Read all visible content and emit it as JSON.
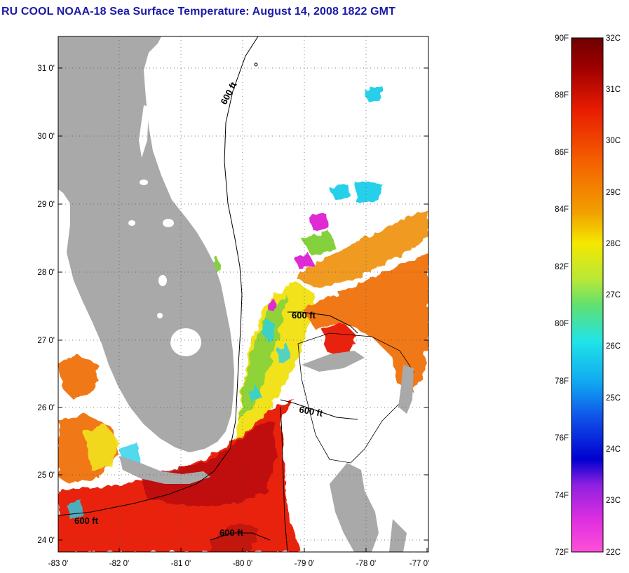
{
  "title": "RU COOL  NOAA-18  Sea Surface Temperature:  August 14, 2008 1822 GMT",
  "map": {
    "lat_ticks": [
      "31 0'",
      "30 0'",
      "29 0'",
      "28 0'",
      "27 0'",
      "26 0'",
      "25 0'",
      "24 0'"
    ],
    "lon_ticks": [
      "-83 0'",
      "-82 0'",
      "-81 0'",
      "-80 0'",
      "-79 0'",
      "-78 0'",
      "-77 0'"
    ],
    "contour_labels": [
      "600 ft",
      "600 ft",
      "600 ft",
      "600 ft",
      "600 ft"
    ],
    "colors": {
      "land": "#a9a9a9",
      "no_data": "#ffffff",
      "warm": "#e8200a",
      "hot": "#b80e0e",
      "orange": "#f07818",
      "yellow": "#f2e21c",
      "green": "#84d13c",
      "cyan": "#28d0ea",
      "magenta": "#e02cd4"
    }
  },
  "colorbar": {
    "f_labels": [
      "90F",
      "88F",
      "86F",
      "84F",
      "82F",
      "80F",
      "78F",
      "76F",
      "74F",
      "72F"
    ],
    "c_labels": [
      "32C",
      "31C",
      "30C",
      "29C",
      "28C",
      "27C",
      "26C",
      "25C",
      "24C",
      "23C",
      "22C"
    ],
    "range_f": [
      72,
      90
    ],
    "range_c": [
      22,
      32
    ]
  }
}
